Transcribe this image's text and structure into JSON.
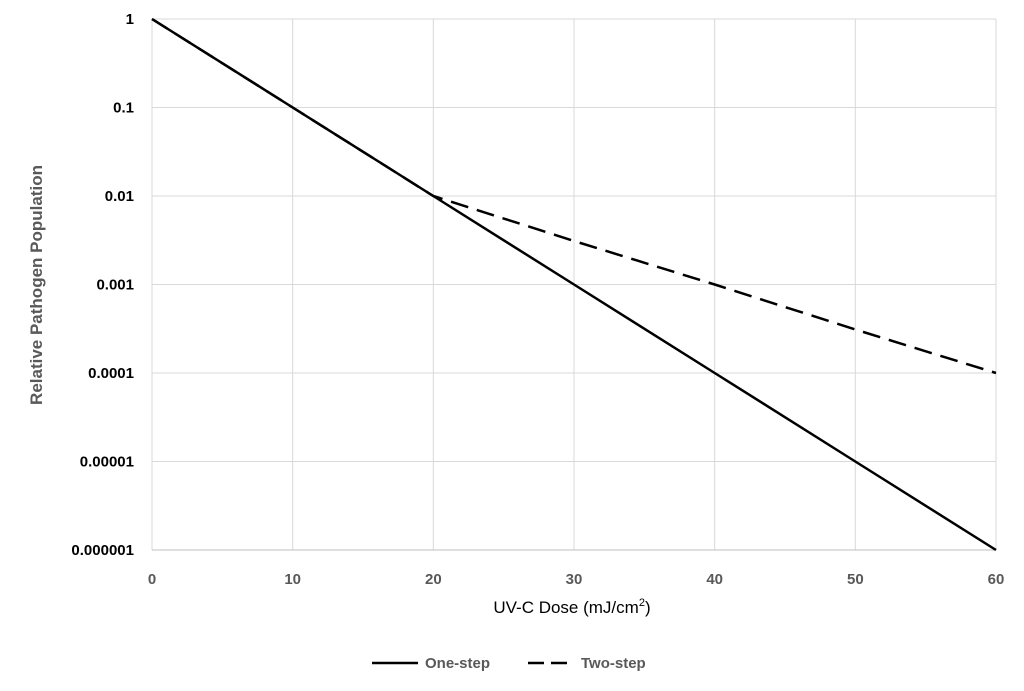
{
  "chart_data": {
    "type": "line",
    "xlabel_main": "UV-C Dose (mJ/cm",
    "xlabel_sup": "2",
    "xlabel_close": ")",
    "ylabel": "Relative Pathogen Population",
    "xlim": [
      0,
      60
    ],
    "ylim": [
      1e-06,
      1
    ],
    "yscale": "log",
    "grid": true,
    "legend_position": "bottom",
    "x_ticks": [
      "0",
      "10",
      "20",
      "30",
      "40",
      "50",
      "60"
    ],
    "y_ticks": [
      "0.000001",
      "0.00001",
      "0.0001",
      "0.001",
      "0.01",
      "0.1",
      "1"
    ],
    "series": [
      {
        "name": "One-step",
        "style": "solid",
        "color": "#000000",
        "points": [
          [
            0,
            1
          ],
          [
            10,
            0.1
          ],
          [
            20,
            0.01
          ],
          [
            30,
            0.001
          ],
          [
            40,
            0.0001
          ],
          [
            50,
            1e-05
          ],
          [
            60,
            1e-06
          ]
        ]
      },
      {
        "name": "Two-step",
        "style": "dashed",
        "color": "#000000",
        "points": [
          [
            0,
            1
          ],
          [
            10,
            0.1
          ],
          [
            20,
            0.01
          ],
          [
            30,
            0.0031
          ],
          [
            40,
            0.001
          ],
          [
            50,
            0.00031
          ],
          [
            60,
            0.0001
          ]
        ]
      }
    ]
  }
}
